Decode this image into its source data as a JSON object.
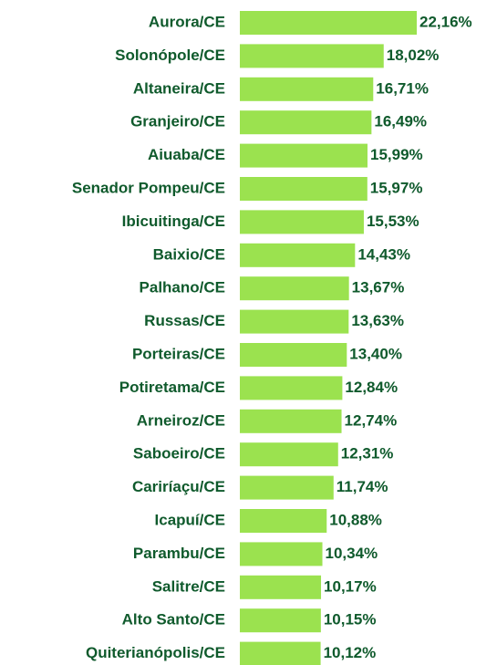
{
  "chart_data": {
    "type": "barh",
    "categories": [
      "Aurora/CE",
      "Solonópole/CE",
      "Altaneira/CE",
      "Granjeiro/CE",
      "Aiuaba/CE",
      "Senador Pompeu/CE",
      "Ibicuitinga/CE",
      "Baixio/CE",
      "Palhano/CE",
      "Russas/CE",
      "Porteiras/CE",
      "Potiretama/CE",
      "Arneiroz/CE",
      "Saboeiro/CE",
      "Cariríaçu/CE",
      "Icapuí/CE",
      "Parambu/CE",
      "Salitre/CE",
      "Alto Santo/CE",
      "Quiterianópolis/CE"
    ],
    "values": [
      22.16,
      18.02,
      16.71,
      16.49,
      15.99,
      15.97,
      15.53,
      14.43,
      13.67,
      13.63,
      13.4,
      12.84,
      12.74,
      12.31,
      11.74,
      10.88,
      10.34,
      10.17,
      10.15,
      10.12
    ],
    "value_labels": [
      "22,16%",
      "18,02%",
      "16,71%",
      "16,49%",
      "15,99%",
      "15,97%",
      "15,53%",
      "14,43%",
      "13,67%",
      "13,63%",
      "13,40%",
      "12,84%",
      "12,74%",
      "12,31%",
      "11,74%",
      "10,88%",
      "10,34%",
      "10,17%",
      "10,15%",
      "10,12%"
    ],
    "color": "#9be24f"
  }
}
